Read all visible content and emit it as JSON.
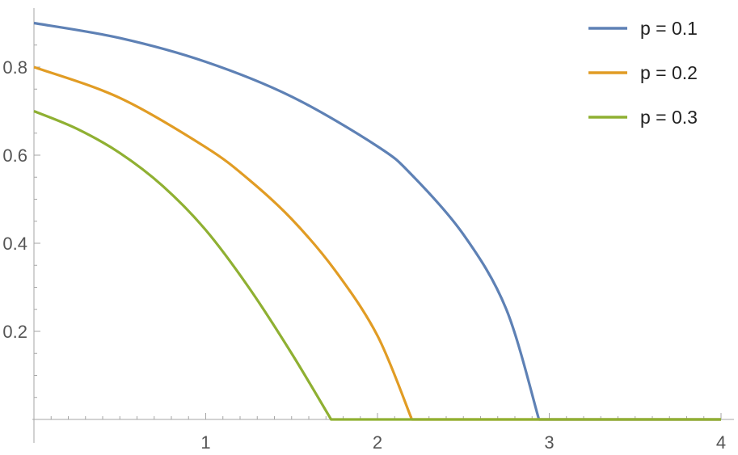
{
  "chart_data": {
    "type": "line",
    "title": "",
    "xlabel": "",
    "ylabel": "",
    "xlim": [
      0,
      4.05
    ],
    "ylim": [
      0,
      0.92
    ],
    "x_ticks": [
      {
        "value": 1,
        "label": "1"
      },
      {
        "value": 2,
        "label": "2"
      },
      {
        "value": 3,
        "label": "3"
      },
      {
        "value": 4,
        "label": "4"
      }
    ],
    "y_ticks": [
      {
        "value": 0.2,
        "label": "0.2"
      },
      {
        "value": 0.4,
        "label": "0.4"
      },
      {
        "value": 0.6,
        "label": "0.6"
      },
      {
        "value": 0.8,
        "label": "0.8"
      }
    ],
    "grid": false,
    "legend_position": "top-right",
    "series": [
      {
        "name": "p = 0.1",
        "color": "#5e81b5",
        "x": [
          0,
          0.5,
          1.0,
          1.5,
          2.0,
          2.2,
          2.5,
          2.75,
          2.94,
          4.0
        ],
        "y": [
          0.9,
          0.866,
          0.812,
          0.733,
          0.62,
          0.555,
          0.42,
          0.25,
          0.0,
          0.0
        ]
      },
      {
        "name": "p = 0.2",
        "color": "#e19c24",
        "x": [
          0,
          0.5,
          1.0,
          1.25,
          1.5,
          1.75,
          2.0,
          2.2,
          4.0
        ],
        "y": [
          0.8,
          0.73,
          0.618,
          0.545,
          0.455,
          0.34,
          0.19,
          0.0,
          0.0
        ]
      },
      {
        "name": "p = 0.3",
        "color": "#8fb032",
        "x": [
          0,
          0.25,
          0.5,
          0.75,
          1.0,
          1.25,
          1.5,
          1.73,
          4.0
        ],
        "y": [
          0.7,
          0.66,
          0.605,
          0.53,
          0.43,
          0.3,
          0.15,
          0.0,
          0.0
        ]
      }
    ]
  }
}
